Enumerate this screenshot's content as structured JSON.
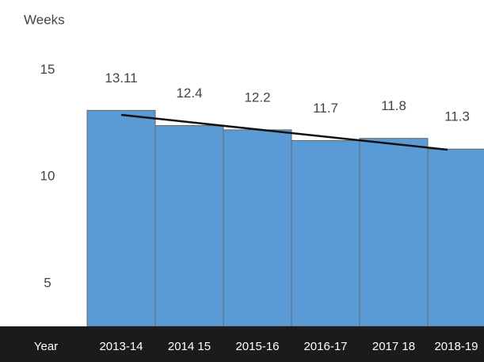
{
  "chart_data": {
    "type": "bar",
    "y_label": "Weeks",
    "x_label": "Year",
    "categories": [
      "2013-14",
      "2014 15",
      "2015-16",
      "2016-17",
      "2017 18",
      "2018-19"
    ],
    "values": [
      13.11,
      12.4,
      12.2,
      11.7,
      11.8,
      11.3
    ],
    "color": "#5b9bd5",
    "ylim": [
      3,
      17.5
    ],
    "yticks": [
      5,
      10,
      15
    ],
    "grid": false,
    "trendline": {
      "color": "#111111",
      "values": [
        12.9,
        11.27
      ]
    }
  }
}
